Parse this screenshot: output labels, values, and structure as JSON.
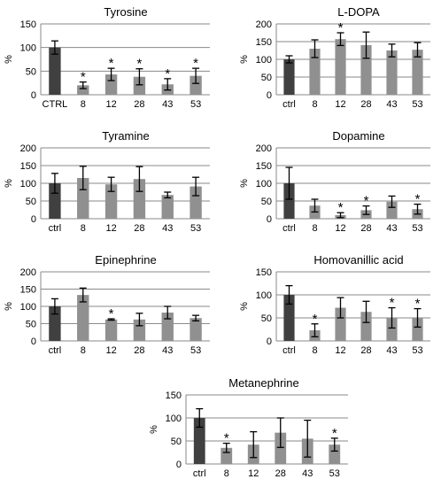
{
  "chart_data": [
    {
      "type": "bar",
      "title": "Tyrosine",
      "ylabel": "%",
      "ylim": [
        0,
        150
      ],
      "yticks": [
        0,
        50,
        100,
        150
      ],
      "grid": true,
      "categories": [
        "CTRL",
        "8",
        "12",
        "28",
        "43",
        "53"
      ],
      "values": [
        100,
        20,
        43,
        38,
        22,
        40
      ],
      "errors": [
        14,
        7,
        13,
        17,
        12,
        16
      ],
      "significant": [
        false,
        true,
        true,
        true,
        true,
        true
      ],
      "colors": [
        "#404040",
        "#909090",
        "#909090",
        "#909090",
        "#909090",
        "#909090"
      ]
    },
    {
      "type": "bar",
      "title": "L-DOPA",
      "ylabel": "%",
      "ylim": [
        0,
        200
      ],
      "yticks": [
        0,
        50,
        100,
        150,
        200
      ],
      "grid": true,
      "categories": [
        "ctrl",
        "8",
        "12",
        "28",
        "43",
        "53"
      ],
      "values": [
        100,
        130,
        157,
        140,
        125,
        127
      ],
      "errors": [
        10,
        25,
        18,
        37,
        18,
        20
      ],
      "significant": [
        false,
        false,
        true,
        false,
        false,
        false
      ],
      "colors": [
        "#404040",
        "#909090",
        "#909090",
        "#909090",
        "#909090",
        "#909090"
      ]
    },
    {
      "type": "bar",
      "title": "Tyramine",
      "ylabel": "%",
      "ylim": [
        0,
        200
      ],
      "yticks": [
        0,
        50,
        100,
        150,
        200
      ],
      "grid": true,
      "categories": [
        "ctrl",
        "8",
        "12",
        "28",
        "43",
        "53"
      ],
      "values": [
        100,
        115,
        97,
        112,
        67,
        91
      ],
      "errors": [
        28,
        33,
        20,
        35,
        8,
        26
      ],
      "significant": [
        false,
        false,
        false,
        false,
        false,
        false
      ],
      "colors": [
        "#404040",
        "#909090",
        "#909090",
        "#909090",
        "#909090",
        "#909090"
      ]
    },
    {
      "type": "bar",
      "title": "Dopamine",
      "ylabel": "%",
      "ylim": [
        0,
        200
      ],
      "yticks": [
        0,
        50,
        100,
        150,
        200
      ],
      "grid": true,
      "categories": [
        "ctrl",
        "8",
        "12",
        "28",
        "43",
        "53"
      ],
      "values": [
        100,
        37,
        10,
        24,
        48,
        27
      ],
      "errors": [
        45,
        18,
        7,
        12,
        16,
        14
      ],
      "significant": [
        false,
        false,
        true,
        true,
        false,
        true
      ],
      "colors": [
        "#404040",
        "#909090",
        "#909090",
        "#909090",
        "#909090",
        "#909090"
      ]
    },
    {
      "type": "bar",
      "title": "Epinephrine",
      "ylabel": "%",
      "ylim": [
        0,
        200
      ],
      "yticks": [
        0,
        50,
        100,
        150,
        200
      ],
      "grid": true,
      "categories": [
        "ctrl",
        "8",
        "12",
        "28",
        "43",
        "53"
      ],
      "values": [
        100,
        133,
        62,
        62,
        82,
        66
      ],
      "errors": [
        22,
        20,
        2,
        18,
        18,
        8
      ],
      "significant": [
        false,
        false,
        true,
        false,
        false,
        false
      ],
      "colors": [
        "#404040",
        "#909090",
        "#909090",
        "#909090",
        "#909090",
        "#909090"
      ]
    },
    {
      "type": "bar",
      "title": "Homovanillic acid",
      "ylabel": "%",
      "ylim": [
        0,
        150
      ],
      "yticks": [
        0,
        50,
        100,
        150
      ],
      "grid": true,
      "categories": [
        "ctrl",
        "8",
        "12",
        "28",
        "43",
        "53"
      ],
      "values": [
        100,
        23,
        72,
        63,
        50,
        50
      ],
      "errors": [
        20,
        14,
        22,
        23,
        22,
        20
      ],
      "significant": [
        false,
        true,
        false,
        false,
        true,
        true
      ],
      "colors": [
        "#404040",
        "#909090",
        "#909090",
        "#909090",
        "#909090",
        "#909090"
      ]
    },
    {
      "type": "bar",
      "title": "Metanephrine",
      "ylabel": "%",
      "ylim": [
        0,
        150
      ],
      "yticks": [
        0,
        50,
        100,
        150
      ],
      "grid": true,
      "categories": [
        "ctrl",
        "8",
        "12",
        "28",
        "43",
        "53"
      ],
      "values": [
        100,
        35,
        42,
        68,
        55,
        42
      ],
      "errors": [
        20,
        10,
        28,
        32,
        40,
        14
      ],
      "significant": [
        false,
        true,
        false,
        false,
        false,
        true
      ],
      "colors": [
        "#404040",
        "#909090",
        "#909090",
        "#909090",
        "#909090",
        "#909090"
      ]
    }
  ],
  "significance_marker": "*"
}
